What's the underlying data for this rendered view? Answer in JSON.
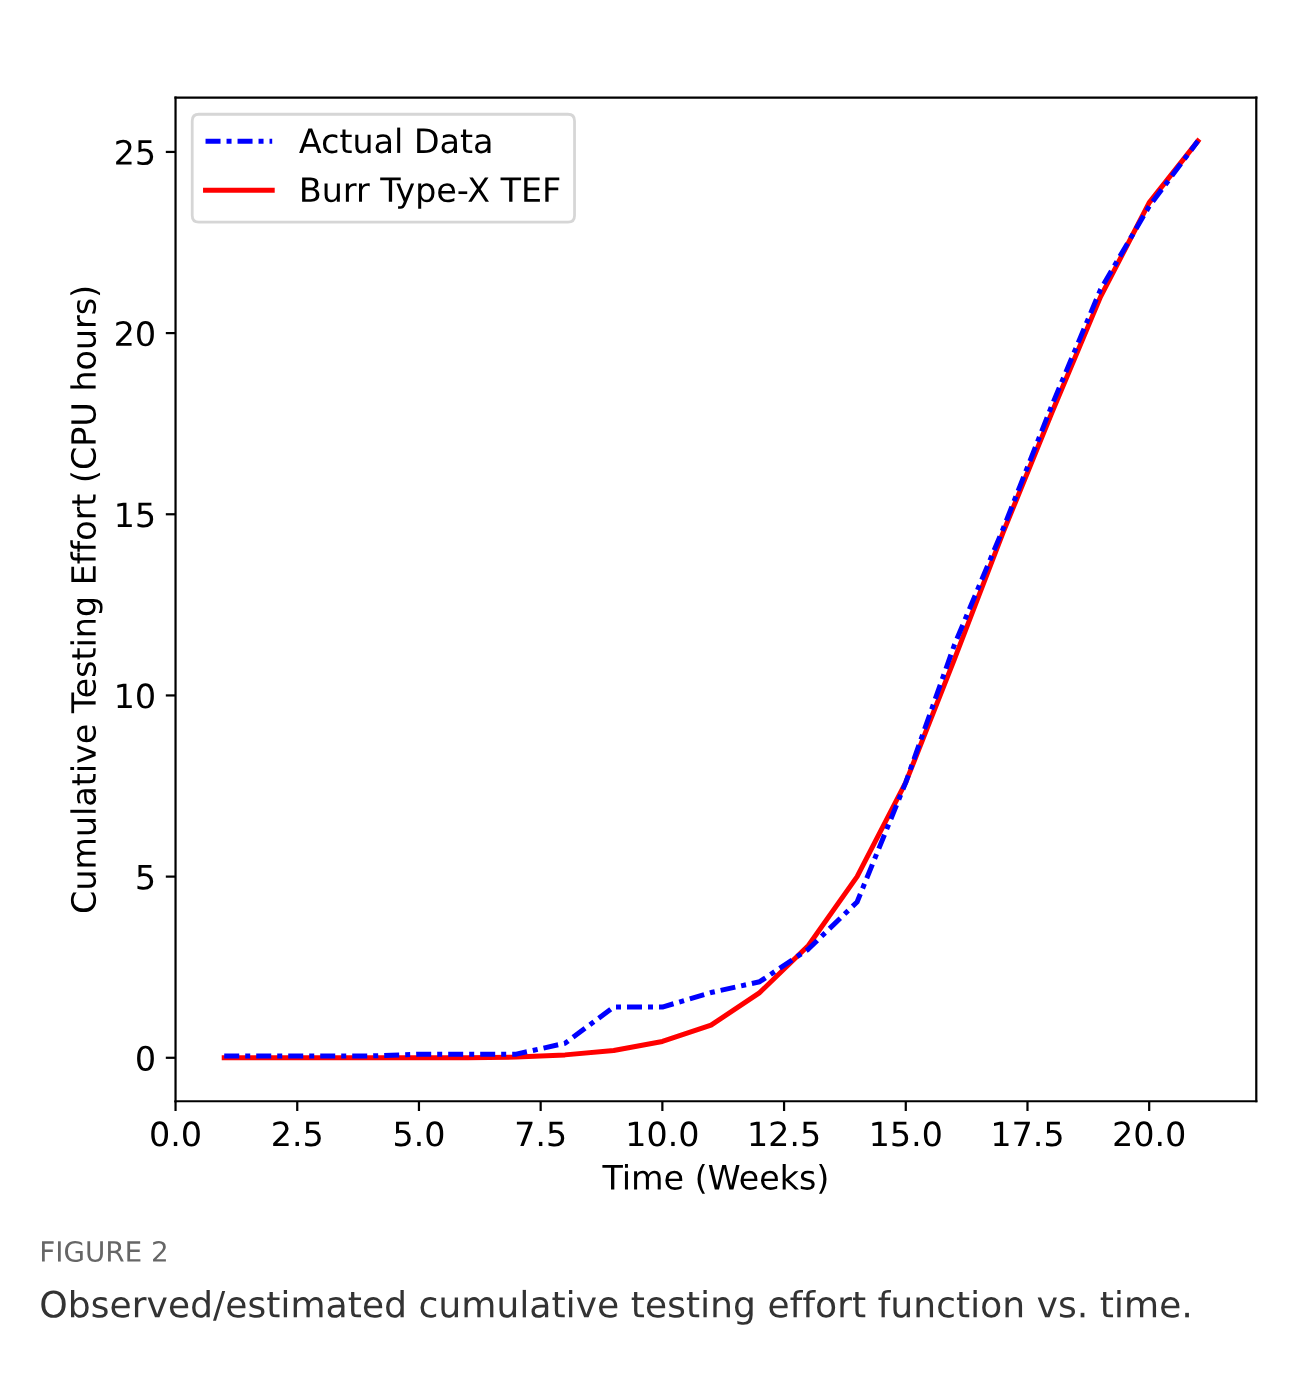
{
  "chart_data": {
    "type": "line",
    "xlabel": "Time (Weeks)",
    "ylabel": "Cumulative Testing Effort (CPU hours)",
    "x": [
      1,
      2,
      3,
      4,
      5,
      6,
      7,
      8,
      9,
      10,
      11,
      12,
      13,
      14,
      15,
      16,
      17,
      18,
      19,
      20,
      21
    ],
    "series": [
      {
        "name": "Actual Data",
        "color": "#0000ff",
        "line_style": "dashdot",
        "values": [
          0.05,
          0.05,
          0.05,
          0.05,
          0.1,
          0.1,
          0.1,
          0.4,
          1.4,
          1.4,
          1.8,
          2.1,
          3.0,
          4.3,
          7.6,
          11.4,
          14.6,
          18.0,
          21.2,
          23.5,
          25.3
        ]
      },
      {
        "name": "Burr Type-X TEF",
        "color": "#ff0000",
        "line_style": "solid",
        "values": [
          0,
          0,
          0,
          0,
          0,
          0,
          0.02,
          0.08,
          0.2,
          0.45,
          0.9,
          1.8,
          3.1,
          5.0,
          7.6,
          11.0,
          14.5,
          17.8,
          21.0,
          23.6,
          25.3
        ]
      }
    ],
    "xlim": [
      0,
      22.2
    ],
    "ylim": [
      -1.2,
      26.5
    ],
    "xticks": [
      {
        "value": 0,
        "label": "0.0"
      },
      {
        "value": 2.5,
        "label": "2.5"
      },
      {
        "value": 5,
        "label": "5.0"
      },
      {
        "value": 7.5,
        "label": "7.5"
      },
      {
        "value": 10,
        "label": "10.0"
      },
      {
        "value": 12.5,
        "label": "12.5"
      },
      {
        "value": 15,
        "label": "15.0"
      },
      {
        "value": 17.5,
        "label": "17.5"
      },
      {
        "value": 20,
        "label": "20.0"
      }
    ],
    "yticks": [
      0,
      5,
      10,
      15,
      20,
      25
    ],
    "legend": "top left",
    "grid": false,
    "annotations": [
      "FIGURE 2",
      "Observed/estimated cumulative testing effort function vs. time."
    ]
  }
}
